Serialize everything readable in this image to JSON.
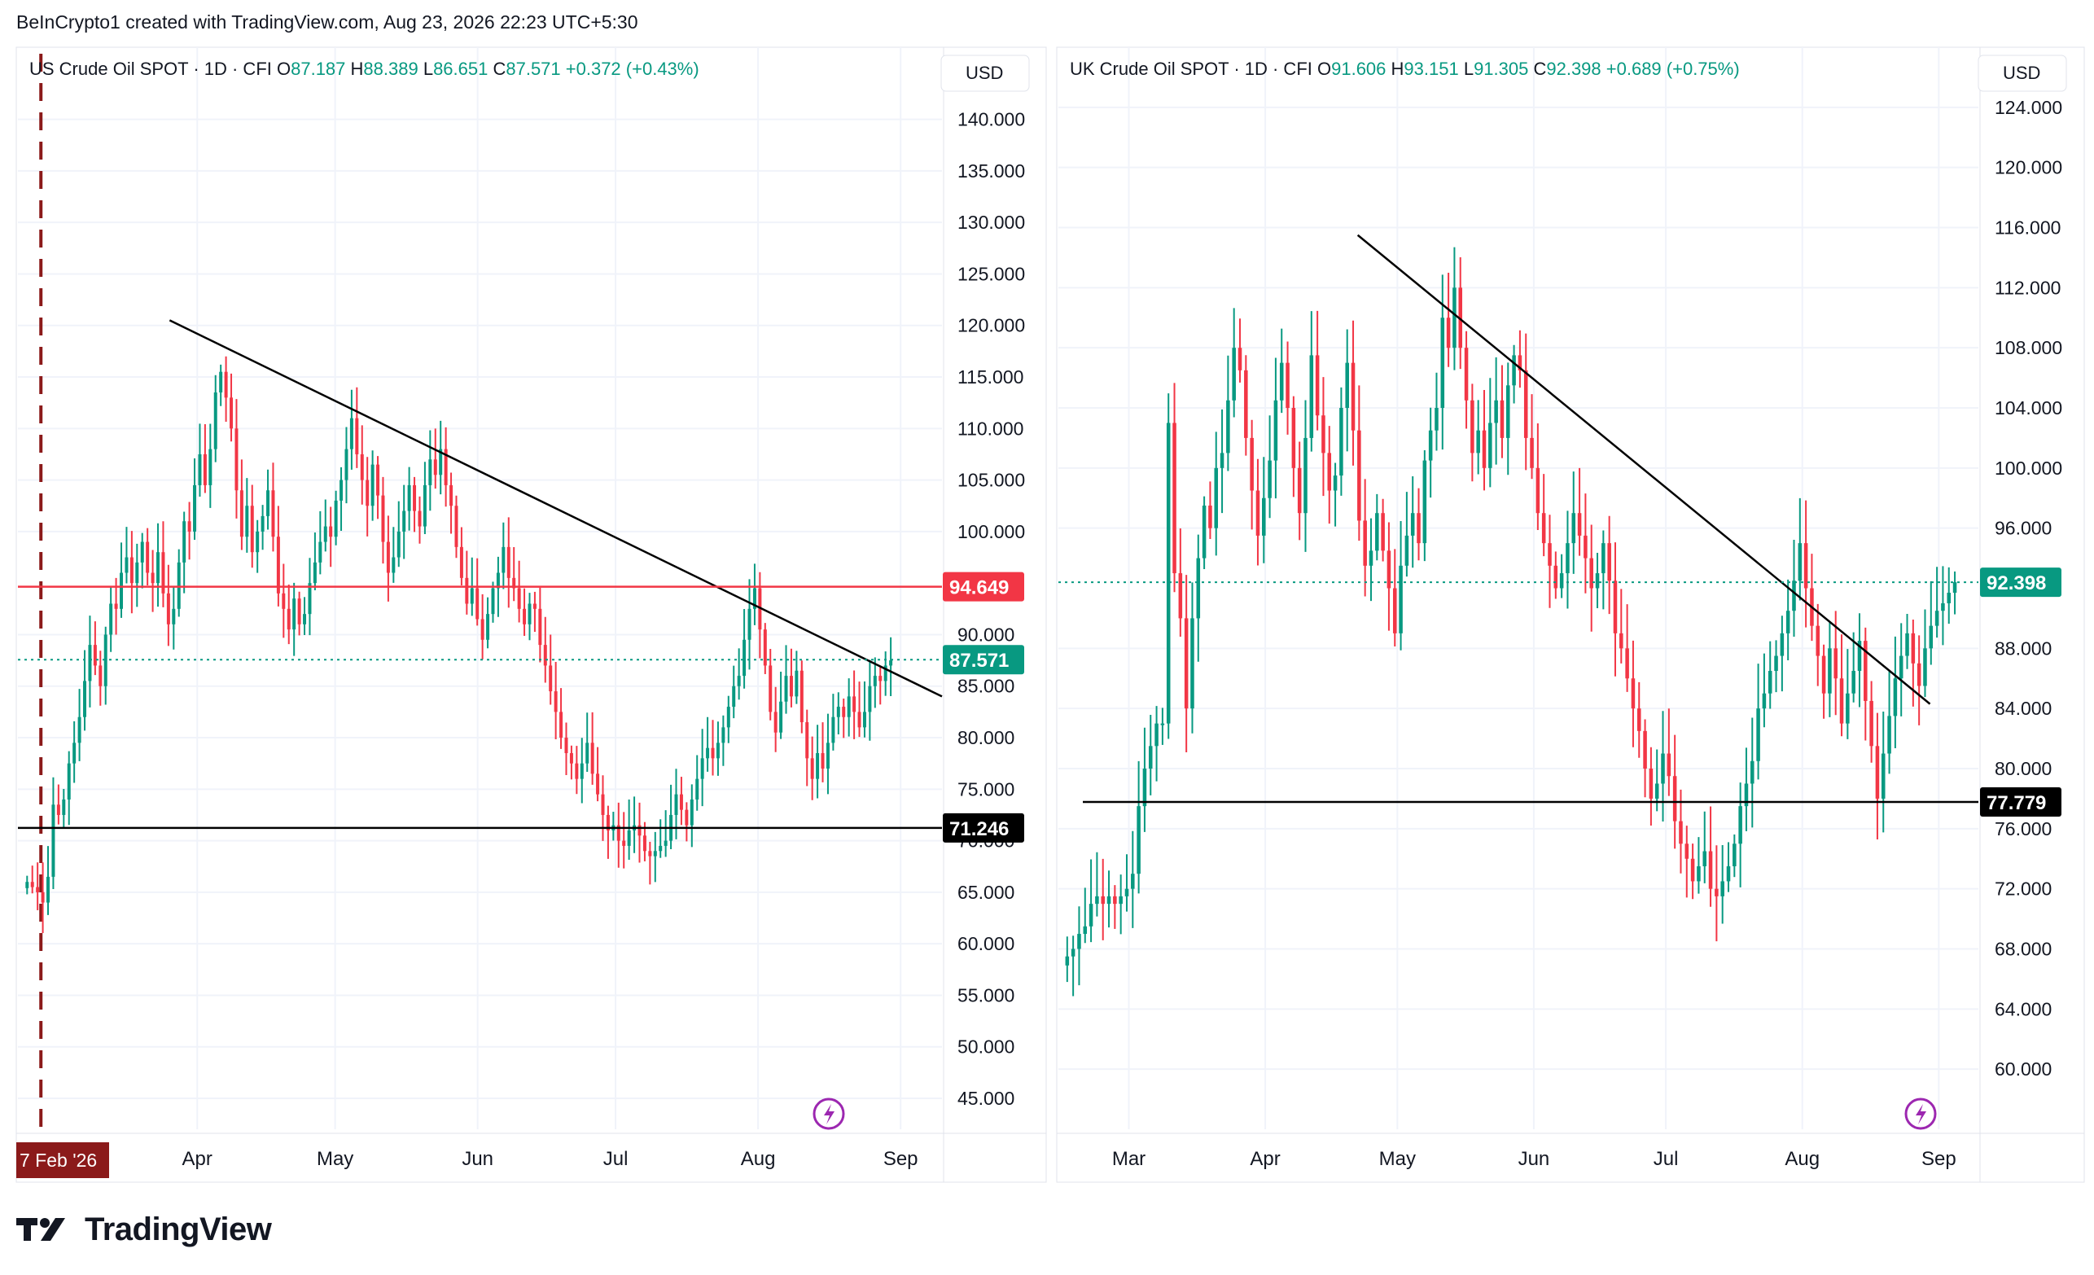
{
  "header": {
    "credit": "BeInCrypto1 created with TradingView.com, Aug 23, 2026 22:23 UTC+5:30"
  },
  "footer": {
    "brand": "TradingView"
  },
  "colors": {
    "up": "#089981",
    "down": "#f23645",
    "resistance_line": "#f23645",
    "grid": "#f0f3fa",
    "text": "#131722",
    "session_marker": "#8b1a1a",
    "event_icon": "#9c27b0"
  },
  "icons": {
    "event": "lightning-icon",
    "brand": "tradingview-logo-icon"
  },
  "chart_data": [
    {
      "type": "candlestick",
      "symbol": "US Crude Oil SPOT",
      "interval": "1D",
      "source": "CFI",
      "ohlc": {
        "o_label": "O",
        "o": "87.187",
        "h_label": "H",
        "h": "88.389",
        "l_label": "L",
        "l": "86.651",
        "c_label": "C",
        "c": "87.571",
        "change": "+0.372 (+0.43%)"
      },
      "currency": "USD",
      "ylim": [
        42,
        147
      ],
      "y_ticks": [
        {
          "v": 140,
          "label": "140.000"
        },
        {
          "v": 135,
          "label": "135.000"
        },
        {
          "v": 130,
          "label": "130.000"
        },
        {
          "v": 125,
          "label": "125.000"
        },
        {
          "v": 120,
          "label": "120.000"
        },
        {
          "v": 115,
          "label": "115.000"
        },
        {
          "v": 110,
          "label": "110.000"
        },
        {
          "v": 105,
          "label": "105.000"
        },
        {
          "v": 100,
          "label": "100.000"
        },
        {
          "v": 90,
          "label": "90.000"
        },
        {
          "v": 85,
          "label": "85.000"
        },
        {
          "v": 80,
          "label": "80.000"
        },
        {
          "v": 75,
          "label": "75.000"
        },
        {
          "v": 70,
          "label": "70.000"
        },
        {
          "v": 65,
          "label": "65.000"
        },
        {
          "v": 60,
          "label": "60.000"
        },
        {
          "v": 55,
          "label": "55.000"
        },
        {
          "v": 50,
          "label": "50.000"
        },
        {
          "v": 45,
          "label": "45.000"
        }
      ],
      "x_ticks": [
        {
          "day": 34,
          "label": "Apr"
        },
        {
          "day": 64,
          "label": "May"
        },
        {
          "day": 95,
          "label": "Jun"
        },
        {
          "day": 125,
          "label": "Jul"
        },
        {
          "day": 156,
          "label": "Aug"
        },
        {
          "day": 187,
          "label": "Sep"
        }
      ],
      "x_range_days": [
        -5,
        196
      ],
      "date_marker": {
        "day": 0,
        "label": "7 Feb '26"
      },
      "levels": [
        {
          "value": 94.649,
          "label": "94.649",
          "style": "resistance"
        },
        {
          "value": 87.571,
          "label": "87.571",
          "style": "last-price"
        },
        {
          "value": 71.246,
          "label": "71.246",
          "style": "support"
        }
      ],
      "trendline": {
        "from": {
          "day": 28,
          "price": 120.5
        },
        "to": {
          "day": 196,
          "price": 84.0
        }
      },
      "closes": [
        66.0,
        65.5,
        65.0,
        64.0,
        66.5,
        73.5,
        72.5,
        74.0,
        77.5,
        79.5,
        82.0,
        85.5,
        89.0,
        87.0,
        85.0,
        90.0,
        93.0,
        92.5,
        96.0,
        97.5,
        95.0,
        97.0,
        99.0,
        96.0,
        95.0,
        98.0,
        94.0,
        91.0,
        92.5,
        97.0,
        101.0,
        100.0,
        104.5,
        107.5,
        104.5,
        108.0,
        113.5,
        115.5,
        113.0,
        110.0,
        104.0,
        99.5,
        102.5,
        98.0,
        100.0,
        101.5,
        104.0,
        99.5,
        94.0,
        92.5,
        90.5,
        93.5,
        91.0,
        92.0,
        95.0,
        97.0,
        99.0,
        100.5,
        99.5,
        103.0,
        105.0,
        108.0,
        111.0,
        107.5,
        105.0,
        102.5,
        106.5,
        103.5,
        99.0,
        96.0,
        97.5,
        100.0,
        102.0,
        104.5,
        102.0,
        100.5,
        104.5,
        107.0,
        105.5,
        108.0,
        104.5,
        102.5,
        98.5,
        95.5,
        93.0,
        94.5,
        91.5,
        89.5,
        92.0,
        94.5,
        96.0,
        98.5,
        95.5,
        94.5,
        92.5,
        91.0,
        93.0,
        92.5,
        89.0,
        87.0,
        84.5,
        82.5,
        80.0,
        78.5,
        77.5,
        76.0,
        77.5,
        79.5,
        76.5,
        74.5,
        72.5,
        71.0,
        71.5,
        70.0,
        69.5,
        71.0,
        71.5,
        70.5,
        69.0,
        68.5,
        69.0,
        69.5,
        70.0,
        72.5,
        74.5,
        73.0,
        71.5,
        74.0,
        76.0,
        78.0,
        79.0,
        78.0,
        79.5,
        81.0,
        83.0,
        85.0,
        86.0,
        89.5,
        92.5,
        94.5,
        90.5,
        87.0,
        82.5,
        80.5,
        83.5,
        86.0,
        84.0,
        86.5,
        81.5,
        78.0,
        76.0,
        78.5,
        77.0,
        79.5,
        82.0,
        83.0,
        82.0,
        84.0,
        82.5,
        81.0,
        82.5,
        85.0,
        86.0,
        85.5,
        87.0,
        87.5
      ]
    },
    {
      "type": "candlestick",
      "symbol": "UK Crude Oil SPOT",
      "interval": "1D",
      "source": "CFI",
      "ohlc": {
        "o_label": "O",
        "o": "91.606",
        "h_label": "H",
        "h": "93.151",
        "l_label": "L",
        "l": "91.305",
        "c_label": "C",
        "c": "92.398",
        "change": "+0.689 (+0.75%)"
      },
      "currency": "USD",
      "ylim": [
        56,
        128
      ],
      "y_ticks": [
        {
          "v": 124,
          "label": "124.000"
        },
        {
          "v": 120,
          "label": "120.000"
        },
        {
          "v": 116,
          "label": "116.000"
        },
        {
          "v": 112,
          "label": "112.000"
        },
        {
          "v": 108,
          "label": "108.000"
        },
        {
          "v": 104,
          "label": "104.000"
        },
        {
          "v": 100,
          "label": "100.000"
        },
        {
          "v": 96,
          "label": "96.000"
        },
        {
          "v": 88,
          "label": "88.000"
        },
        {
          "v": 84,
          "label": "84.000"
        },
        {
          "v": 80,
          "label": "80.000"
        },
        {
          "v": 76,
          "label": "76.000"
        },
        {
          "v": 72,
          "label": "72.000"
        },
        {
          "v": 68,
          "label": "68.000"
        },
        {
          "v": 64,
          "label": "64.000"
        },
        {
          "v": 60,
          "label": "60.000"
        }
      ],
      "x_ticks": [
        {
          "day": 0,
          "label": "Mar"
        },
        {
          "day": 31,
          "label": "Apr"
        },
        {
          "day": 61,
          "label": "May"
        },
        {
          "day": 92,
          "label": "Jun"
        },
        {
          "day": 122,
          "label": "Jul"
        },
        {
          "day": 153,
          "label": "Aug"
        },
        {
          "day": 184,
          "label": "Sep"
        }
      ],
      "x_range_days": [
        -16,
        193
      ],
      "levels": [
        {
          "value": 92.398,
          "label": "92.398",
          "style": "last-price"
        },
        {
          "value": 77.779,
          "label": "77.779",
          "style": "support"
        }
      ],
      "trendline": {
        "from": {
          "day": 52,
          "price": 115.5
        },
        "to": {
          "day": 182,
          "price": 84.3
        }
      },
      "closes": [
        67.5,
        68.0,
        69.0,
        69.5,
        71.0,
        71.5,
        71.0,
        71.5,
        71.0,
        71.5,
        72.0,
        73.0,
        77.5,
        80.0,
        81.5,
        83.0,
        83.0,
        103.0,
        93.0,
        90.0,
        84.0,
        90.0,
        94.0,
        97.5,
        96.0,
        100.0,
        101.0,
        104.5,
        108.0,
        106.5,
        102.0,
        98.5,
        95.5,
        98.0,
        100.5,
        104.5,
        107.0,
        104.0,
        100.0,
        97.0,
        102.0,
        107.5,
        103.5,
        101.0,
        98.5,
        99.5,
        104.0,
        107.0,
        102.5,
        96.5,
        93.5,
        94.5,
        97.0,
        94.5,
        92.0,
        89.0,
        93.5,
        95.5,
        97.0,
        95.0,
        100.5,
        102.5,
        104.0,
        110.0,
        108.0,
        112.0,
        108.0,
        104.5,
        101.0,
        102.5,
        100.0,
        103.0,
        104.5,
        102.0,
        105.5,
        107.5,
        106.5,
        102.0,
        100.0,
        97.0,
        95.0,
        93.5,
        92.0,
        93.0,
        95.0,
        97.0,
        95.5,
        94.0,
        92.0,
        93.0,
        95.0,
        92.5,
        89.0,
        88.0,
        86.0,
        84.0,
        82.5,
        80.0,
        78.0,
        79.0,
        81.0,
        79.5,
        76.5,
        75.0,
        74.0,
        72.5,
        73.5,
        74.5,
        72.0,
        71.5,
        72.5,
        73.5,
        75.0,
        77.5,
        79.0,
        80.5,
        84.0,
        85.0,
        86.5,
        87.5,
        89.0,
        90.5,
        92.5,
        95.0,
        92.0,
        89.5,
        87.5,
        85.0,
        88.0,
        86.0,
        83.0,
        85.0,
        86.5,
        88.5,
        84.5,
        81.5,
        78.0,
        81.0,
        83.5,
        86.0,
        87.5,
        89.0,
        87.0,
        85.5,
        88.0,
        89.5,
        90.5,
        91.0,
        91.7,
        92.4
      ]
    }
  ]
}
